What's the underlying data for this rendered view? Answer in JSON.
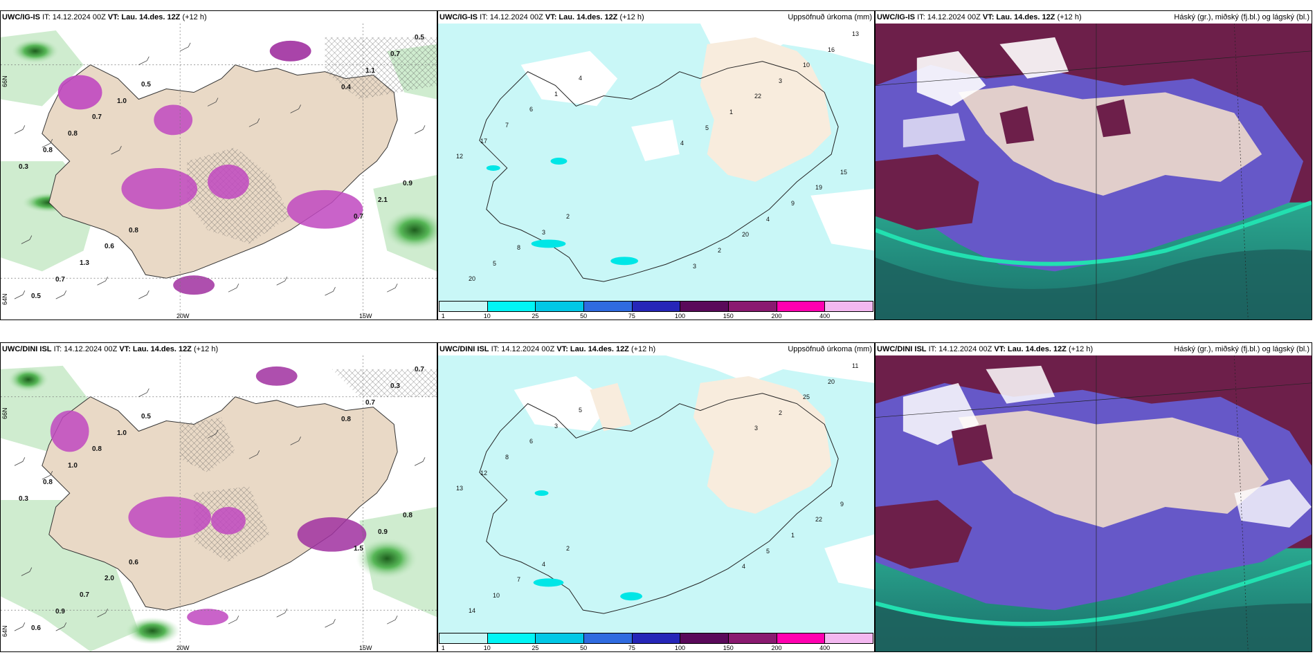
{
  "rows": [
    {
      "source": "UWC/IG-IS",
      "issue_time": "IT: 14.12.2024 00Z",
      "valid_label": "VT:",
      "valid_time": "Lau. 14.des. 12Z",
      "lead": "(+12 h)"
    },
    {
      "source": "UWC/DINI ISL",
      "issue_time": "IT: 14.12.2024 00Z",
      "valid_label": "VT:",
      "valid_time": "Lau. 14.des. 12Z",
      "lead": "(+12 h)"
    }
  ],
  "precip_title": "Uppsöfnuð úrkoma (mm)",
  "cloud_title": "Háský (gr.), miðský (fj.bl.) og lágský (bl.)",
  "lon_labels": [
    "20W",
    "15W"
  ],
  "lat_labels": [
    "66N",
    "64N"
  ],
  "colorbar": {
    "ticks": [
      "1",
      "10",
      "25",
      "50",
      "75",
      "100",
      "150",
      "200",
      "400"
    ],
    "colors": [
      "#c9f7f7",
      "#00f5f5",
      "#00c8e6",
      "#2f6be0",
      "#2626b8",
      "#5a0a5a",
      "#8a1a70",
      "#ff00b0",
      "#f3b8f0"
    ]
  },
  "wind_labels": {
    "top": [
      "0.5",
      "0.8",
      "1.0",
      "0.6",
      "0.7",
      "1.3",
      "0.8",
      "0.7",
      "0.8",
      "0.5",
      "0.3",
      "0.5",
      "0.9",
      "0.7",
      "2.1",
      "1.1",
      "0.7",
      "0.4"
    ],
    "bottom": [
      "0.5",
      "0.6",
      "1.0",
      "2.0",
      "0.8",
      "0.7",
      "1.0",
      "0.9",
      "0.8",
      "0.6",
      "0.3",
      "0.7",
      "0.8",
      "0.3",
      "0.9",
      "0.7",
      "1.5",
      "0.8"
    ]
  },
  "precip_labels": {
    "top": [
      "4",
      "2",
      "1",
      "3",
      "6",
      "8",
      "7",
      "5",
      "17",
      "20",
      "12",
      "13",
      "15",
      "16",
      "19",
      "10",
      "9",
      "3",
      "4",
      "22",
      "20",
      "1",
      "2",
      "5",
      "3",
      "4"
    ],
    "bottom": [
      "5",
      "2",
      "3",
      "4",
      "6",
      "7",
      "8",
      "10",
      "12",
      "14",
      "13",
      "11",
      "9",
      "20",
      "22",
      "25",
      "1",
      "2",
      "5",
      "3",
      "4"
    ]
  }
}
